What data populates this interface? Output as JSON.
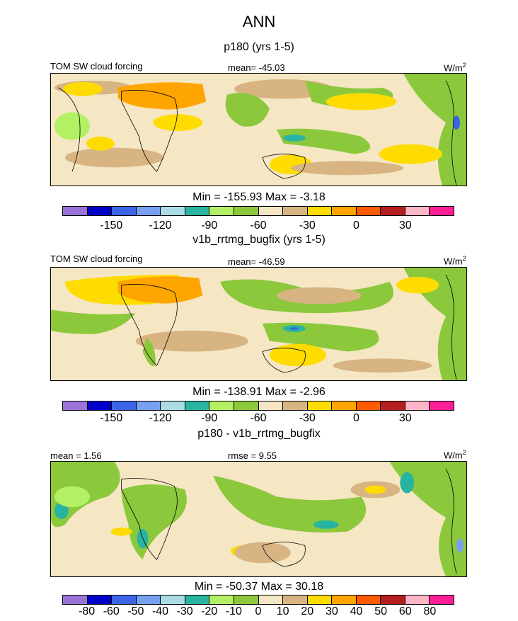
{
  "title": "ANN",
  "panels": [
    {
      "subtitle": "p180 (yrs 1-5)",
      "left_label": "TOM SW cloud forcing",
      "center_label": "mean= -45.03",
      "units": "W/m",
      "units_sup": "2",
      "min_max": "Min = -155.93 Max =  -3.18",
      "colorbar_labels": [
        "-150",
        "-120",
        "-90",
        "-60",
        "-30",
        "0",
        "30"
      ]
    },
    {
      "subtitle": "v1b_rrtmg_bugfix (yrs 1-5)",
      "left_label": "TOM SW cloud forcing",
      "center_label": "mean= -46.59",
      "units": "W/m",
      "units_sup": "2",
      "min_max": "Min = -138.91 Max =  -2.96",
      "colorbar_labels": [
        "-150",
        "-120",
        "-90",
        "-60",
        "-30",
        "0",
        "30"
      ]
    },
    {
      "subtitle": "p180 - v1b_rrtmg_bugfix",
      "left_label": "mean =   1.56",
      "center_label": "rmse =   9.55",
      "units": "W/m",
      "units_sup": "2",
      "min_max": "Min = -50.37 Max =  30.18",
      "colorbar_labels": [
        "-80",
        "-60",
        "-50",
        "-40",
        "-30",
        "-20",
        "-10",
        "0",
        "10",
        "20",
        "30",
        "40",
        "50",
        "60",
        "80"
      ]
    }
  ],
  "colors": {
    "palette": [
      "#9b73d8",
      "#0000c8",
      "#3c64e6",
      "#78a0f0",
      "#aadce6",
      "#28b4a0",
      "#b4f064",
      "#8cc83c",
      "#f5e6c4",
      "#d7b482",
      "#ffdc00",
      "#ffa500",
      "#ff5a00",
      "#b41e1e",
      "#ffb4c8",
      "#ff1e96"
    ]
  }
}
